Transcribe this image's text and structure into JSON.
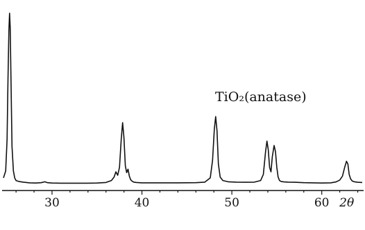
{
  "chart_data": {
    "type": "line",
    "title": "",
    "xlabel": "2θ",
    "ylabel": "",
    "xlim": [
      24.6,
      64.5
    ],
    "ylim": [
      0,
      100
    ],
    "grid": false,
    "legend": "none",
    "annotation": "TiO₂(anatase)",
    "x_ticks": [
      30,
      40,
      50,
      60
    ],
    "x_tick_labels": [
      "30",
      "40",
      "50",
      "60"
    ],
    "line_color": "#111111",
    "series": [
      {
        "x": [
          24.6,
          24.85,
          25.0,
          25.1,
          25.2,
          25.28,
          25.35,
          25.45,
          25.55,
          25.7,
          25.85,
          26.0,
          26.3,
          26.8,
          27.5,
          28.2,
          28.8,
          29.2,
          29.5,
          30.0,
          31.0,
          32.0,
          33.0,
          34.0,
          35.0,
          36.0,
          36.6,
          36.9,
          37.1,
          37.3,
          37.5,
          37.7,
          37.85,
          38.0,
          38.15,
          38.3,
          38.45,
          38.6,
          38.75,
          38.9,
          39.1,
          39.4,
          40.0,
          42.0,
          44.0,
          46.0,
          47.0,
          47.6,
          47.85,
          48.05,
          48.2,
          48.35,
          48.5,
          48.7,
          49.0,
          49.6,
          50.5,
          51.5,
          52.5,
          53.2,
          53.5,
          53.75,
          53.9,
          54.05,
          54.2,
          54.35,
          54.5,
          54.7,
          54.85,
          55.0,
          55.15,
          55.3,
          55.5,
          55.8,
          56.3,
          57.0,
          58.0,
          59.0,
          60.0,
          61.0,
          61.6,
          62.0,
          62.3,
          62.55,
          62.75,
          62.9,
          63.05,
          63.2,
          63.4,
          63.7,
          64.0,
          64.5
        ],
        "y": [
          6,
          10,
          28,
          62,
          90,
          100,
          92,
          58,
          24,
          10,
          6,
          4.5,
          4,
          3.6,
          3.2,
          3.1,
          3.3,
          3.8,
          3.3,
          3.1,
          3.0,
          3.0,
          3.0,
          3.0,
          3.1,
          3.4,
          4.5,
          6.5,
          9.5,
          7.5,
          12,
          28,
          37.5,
          29,
          13,
          9,
          11,
          7,
          5,
          4.2,
          3.6,
          3.4,
          3.2,
          3.2,
          3.2,
          3.3,
          3.6,
          6,
          16,
          34,
          41,
          33,
          14,
          6.5,
          4.5,
          3.8,
          3.6,
          3.5,
          3.6,
          4.5,
          8,
          21,
          27,
          22,
          12,
          9.5,
          18,
          24.5,
          21,
          12,
          6.5,
          4.5,
          3.9,
          3.7,
          3.6,
          3.5,
          3.3,
          3.2,
          3.1,
          3.2,
          3.7,
          4.8,
          7,
          12,
          15.5,
          14,
          8,
          5.5,
          4.2,
          3.7,
          3.5,
          3.4
        ]
      }
    ]
  }
}
